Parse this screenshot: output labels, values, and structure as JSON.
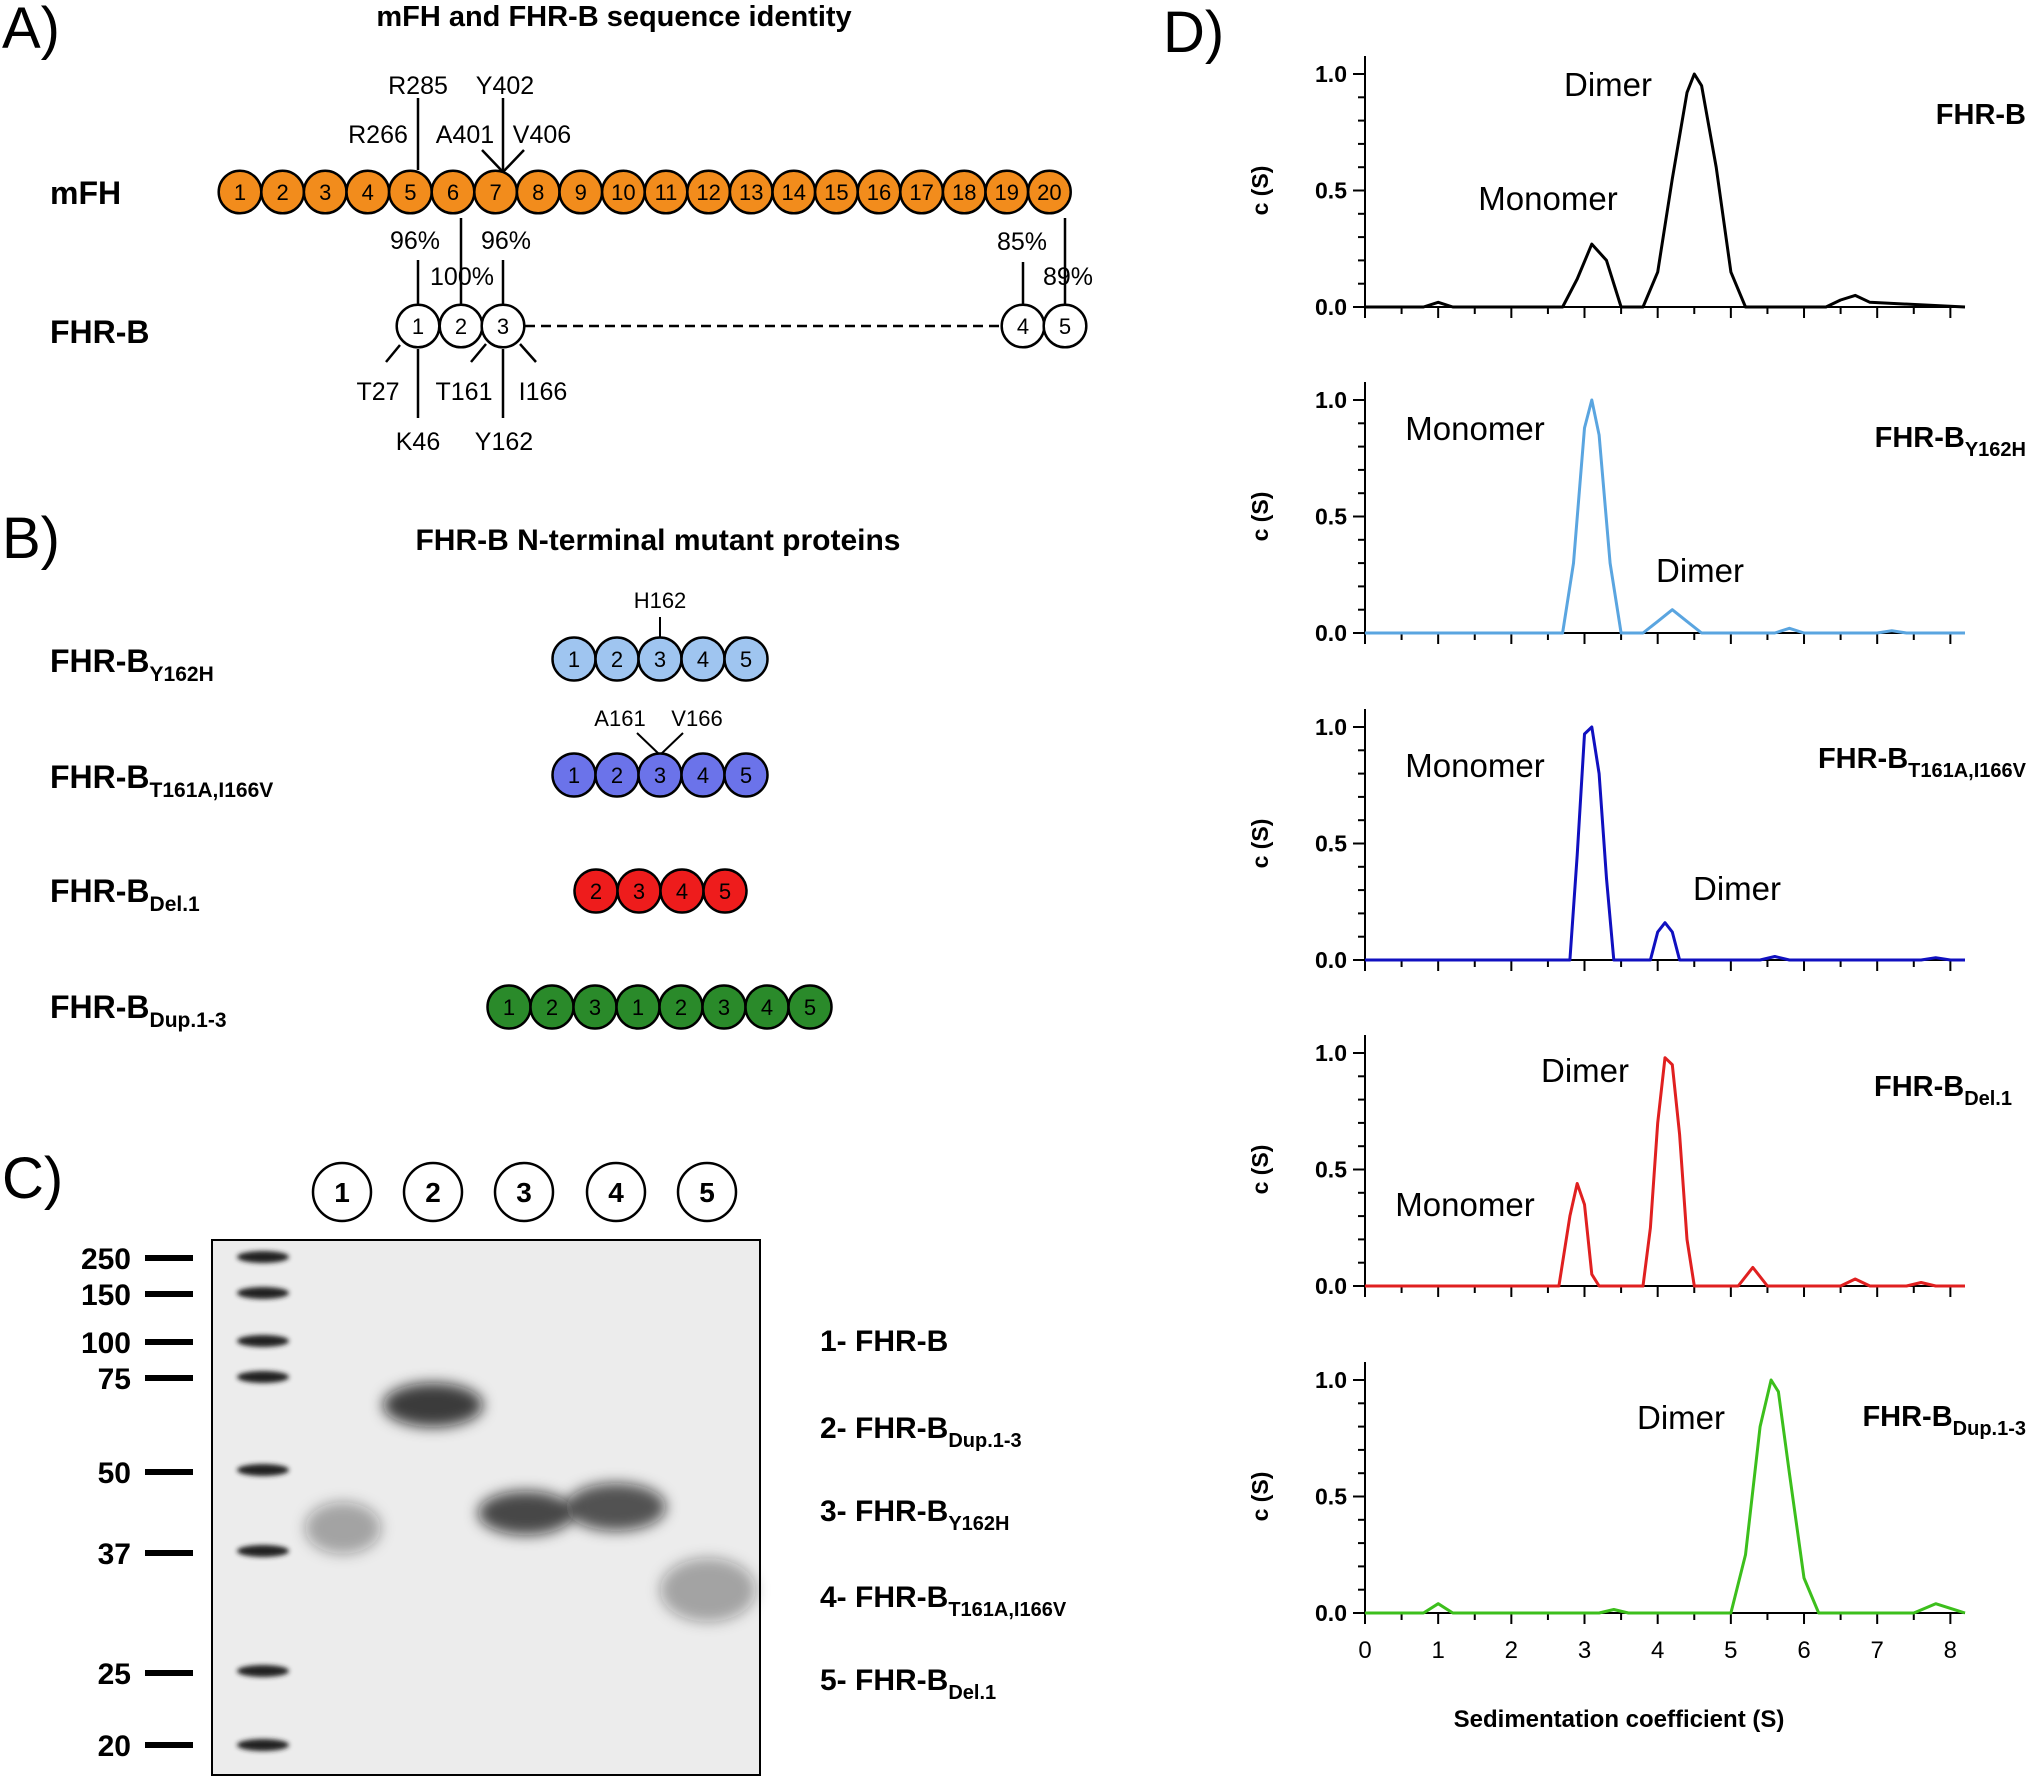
{
  "panel_a": {
    "letter": "A)",
    "title": "mFH and FHR-B sequence identity",
    "mfh_label": "mFH",
    "fhrb_label": "FHR-B",
    "mfh_domains": [
      "1",
      "2",
      "3",
      "4",
      "5",
      "6",
      "7",
      "8",
      "9",
      "10",
      "11",
      "12",
      "13",
      "14",
      "15",
      "16",
      "17",
      "18",
      "19",
      "20"
    ],
    "fhrb_domains": [
      "1",
      "2",
      "3",
      "4",
      "5"
    ],
    "mfh_residues": [
      "R285",
      "Y402",
      "R266",
      "A401",
      "V406"
    ],
    "identities": [
      "96%",
      "96%",
      "100%",
      "85%",
      "89%"
    ],
    "fhrb_residues": [
      "T27",
      "T161",
      "I166",
      "K46",
      "Y162"
    ],
    "colors": {
      "mfh": "#f28c1c",
      "fhrb": "#ffffff"
    }
  },
  "panel_b": {
    "letter": "B)",
    "title": "FHR-B N-terminal mutant proteins",
    "constructs": [
      {
        "name": "FHR-B",
        "sub": "Y162H",
        "domains": [
          "1",
          "2",
          "3",
          "4",
          "5"
        ],
        "color": "#9fc5f0",
        "annotations": [
          "H162"
        ]
      },
      {
        "name": "FHR-B",
        "sub": "T161A,I166V",
        "domains": [
          "1",
          "2",
          "3",
          "4",
          "5"
        ],
        "color": "#6b73ea",
        "annotations": [
          "A161",
          "V166"
        ]
      },
      {
        "name": "FHR-B",
        "sub": "Del.1",
        "domains": [
          "2",
          "3",
          "4",
          "5"
        ],
        "color": "#ee1c1c",
        "annotations": []
      },
      {
        "name": "FHR-B",
        "sub": "Dup.1-3",
        "domains": [
          "1",
          "2",
          "3",
          "1",
          "2",
          "3",
          "4",
          "5"
        ],
        "color": "#2a8a2a",
        "annotations": []
      }
    ]
  },
  "panel_c": {
    "letter": "C)",
    "lanes": [
      "1",
      "2",
      "3",
      "4",
      "5"
    ],
    "marker_kda": [
      "250",
      "150",
      "100",
      "75",
      "50",
      "37",
      "25",
      "20"
    ],
    "legend": [
      {
        "text": "1- FHR-B",
        "sub": ""
      },
      {
        "text": "2- FHR-B",
        "sub": "Dup.1-3"
      },
      {
        "text": "3- FHR-B",
        "sub": "Y162H"
      },
      {
        "text": "4- FHR-B",
        "sub": "T161A,I166V"
      },
      {
        "text": "5- FHR-B",
        "sub": "Del.1"
      }
    ]
  },
  "panel_d": {
    "letter": "D)",
    "xlabel": "Sedimentation coefficient (S)",
    "ylabel": "c (S)"
  },
  "chart_data": [
    {
      "type": "line",
      "title": "FHR-B",
      "title_sub": "",
      "color": "#000000",
      "xlim": [
        0,
        8.2
      ],
      "ylim": [
        0,
        1.0
      ],
      "yticks": [
        "0.0",
        "0.5",
        "1.0"
      ],
      "x": [
        0,
        0.8,
        1.0,
        1.2,
        2.7,
        2.9,
        3.1,
        3.3,
        3.5,
        3.8,
        4.0,
        4.2,
        4.4,
        4.5,
        4.6,
        4.8,
        5.0,
        5.2,
        6.3,
        6.5,
        6.7,
        6.9,
        8.2
      ],
      "y": [
        0,
        0,
        0.02,
        0,
        0,
        0.12,
        0.27,
        0.2,
        0,
        0,
        0.15,
        0.55,
        0.92,
        1.0,
        0.95,
        0.6,
        0.15,
        0,
        0,
        0.03,
        0.05,
        0.02,
        0
      ],
      "annotations": [
        {
          "text": "Dimer",
          "x": 4.5,
          "y": 1.0
        },
        {
          "text": "Monomer",
          "x": 3.1,
          "y": 0.27
        }
      ]
    },
    {
      "type": "line",
      "title": "FHR-B",
      "title_sub": "Y162H",
      "color": "#5aa5e0",
      "xlim": [
        0,
        8.2
      ],
      "ylim": [
        0,
        1.0
      ],
      "yticks": [
        "0.0",
        "0.5",
        "1.0"
      ],
      "x": [
        0,
        2.7,
        2.85,
        3.0,
        3.1,
        3.2,
        3.35,
        3.5,
        3.8,
        4.0,
        4.2,
        4.4,
        4.6,
        5.6,
        5.8,
        6.0,
        7.0,
        7.2,
        7.4,
        8.2
      ],
      "y": [
        0,
        0,
        0.3,
        0.88,
        1.0,
        0.85,
        0.3,
        0,
        0,
        0.05,
        0.1,
        0.05,
        0,
        0,
        0.02,
        0,
        0,
        0.01,
        0,
        0
      ],
      "annotations": [
        {
          "text": "Monomer",
          "x": 3.1,
          "y": 1.0
        },
        {
          "text": "Dimer",
          "x": 4.2,
          "y": 0.1
        }
      ]
    },
    {
      "type": "line",
      "title": "FHR-B",
      "title_sub": "T161A,I166V",
      "color": "#1010c0",
      "xlim": [
        0,
        8.2
      ],
      "ylim": [
        0,
        1.0
      ],
      "yticks": [
        "0.0",
        "0.5",
        "1.0"
      ],
      "x": [
        0,
        2.8,
        2.9,
        3.0,
        3.1,
        3.2,
        3.3,
        3.4,
        3.6,
        3.9,
        4.0,
        4.1,
        4.2,
        4.3,
        4.5,
        5.4,
        5.6,
        5.8,
        7.6,
        7.8,
        8.0,
        8.2
      ],
      "y": [
        0,
        0,
        0.45,
        0.97,
        1.0,
        0.8,
        0.35,
        0,
        0,
        0,
        0.12,
        0.16,
        0.12,
        0,
        0,
        0,
        0.015,
        0,
        0,
        0.01,
        0,
        0
      ],
      "annotations": [
        {
          "text": "Monomer",
          "x": 3.1,
          "y": 1.0
        },
        {
          "text": "Dimer",
          "x": 4.1,
          "y": 0.16
        }
      ]
    },
    {
      "type": "line",
      "title": "FHR-B",
      "title_sub": "Del.1",
      "color": "#e02020",
      "xlim": [
        0,
        8.2
      ],
      "ylim": [
        0,
        1.0
      ],
      "yticks": [
        "0.0",
        "0.5",
        "1.0"
      ],
      "x": [
        0,
        2.65,
        2.8,
        2.9,
        3.0,
        3.1,
        3.2,
        3.8,
        3.9,
        4.0,
        4.1,
        4.2,
        4.3,
        4.4,
        4.5,
        5.1,
        5.3,
        5.5,
        6.5,
        6.7,
        6.9,
        7.4,
        7.6,
        7.8,
        8.2
      ],
      "y": [
        0,
        0,
        0.3,
        0.44,
        0.35,
        0.05,
        0,
        0,
        0.25,
        0.7,
        0.98,
        0.95,
        0.65,
        0.2,
        0,
        0,
        0.08,
        0,
        0,
        0.03,
        0,
        0,
        0.015,
        0,
        0
      ],
      "annotations": [
        {
          "text": "Dimer",
          "x": 4.15,
          "y": 1.0
        },
        {
          "text": "Monomer",
          "x": 2.9,
          "y": 0.44
        }
      ]
    },
    {
      "type": "line",
      "title": "FHR-B",
      "title_sub": "Dup.1-3",
      "color": "#3cbf1c",
      "xlim": [
        0,
        8.2
      ],
      "ylim": [
        0,
        1.0
      ],
      "yticks": [
        "0.0",
        "0.5",
        "1.0"
      ],
      "x": [
        0,
        0.8,
        1.0,
        1.2,
        3.2,
        3.4,
        3.6,
        5.0,
        5.2,
        5.4,
        5.55,
        5.65,
        5.8,
        6.0,
        6.2,
        7.5,
        7.8,
        8.1,
        8.2
      ],
      "y": [
        0,
        0,
        0.04,
        0,
        0,
        0.015,
        0,
        0,
        0.25,
        0.8,
        1.0,
        0.95,
        0.6,
        0.15,
        0,
        0,
        0.04,
        0.01,
        0
      ],
      "annotations": [
        {
          "text": "Dimer",
          "x": 5.6,
          "y": 1.0
        }
      ]
    }
  ],
  "xticks": [
    "0",
    "1",
    "2",
    "3",
    "4",
    "5",
    "6",
    "7",
    "8"
  ]
}
